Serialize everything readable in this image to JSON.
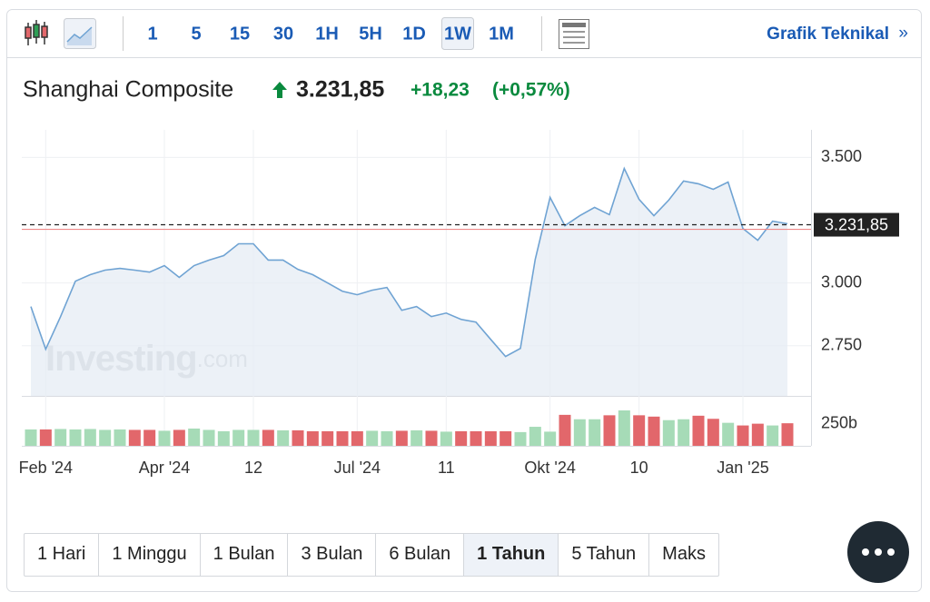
{
  "toolbar": {
    "intervals": [
      "1",
      "5",
      "15",
      "30",
      "1H",
      "5H",
      "1D",
      "1W",
      "1M"
    ],
    "selected_index": 7,
    "link": "Grafik Teknikal",
    "link_arrow": "»"
  },
  "header": {
    "name": "Shanghai Composite",
    "price": "3.231,85",
    "change": "+18,23",
    "change_pct": "(+0,57%)"
  },
  "chart_data": {
    "type": "line",
    "categories": [
      null,
      "Feb '24",
      null,
      null,
      null,
      null,
      null,
      null,
      null,
      "Apr '24",
      null,
      null,
      null,
      null,
      null,
      "12",
      null,
      null,
      null,
      null,
      null,
      null,
      "Jul '24",
      null,
      null,
      null,
      null,
      null,
      "11",
      null,
      null,
      null,
      null,
      null,
      null,
      "Okt '24",
      null,
      null,
      null,
      null,
      null,
      "10",
      null,
      null,
      null,
      null,
      null,
      null,
      "Jan '25",
      null,
      null,
      null
    ],
    "values": [
      2906,
      2736,
      2866,
      3007,
      3033,
      3051,
      3058,
      3051,
      3043,
      3069,
      3022,
      3069,
      3091,
      3109,
      3156,
      3156,
      3091,
      3091,
      3054,
      3033,
      3000,
      2967,
      2953,
      2971,
      2982,
      2891,
      2906,
      2866,
      2880,
      2855,
      2844,
      2775,
      2707,
      2739,
      3094,
      3341,
      3228,
      3268,
      3301,
      3272,
      3456,
      3333,
      3268,
      3330,
      3406,
      3395,
      3373,
      3402,
      3217,
      3170,
      3246,
      3236
    ],
    "color": "#6fa3d3",
    "fill": "#e5ecf4",
    "ylim": [
      2550,
      3610
    ],
    "yticks": [
      {
        "value": 2750,
        "label": "2.750"
      },
      {
        "value": 3000,
        "label": "3.000"
      },
      {
        "value": 3500,
        "label": "3.500"
      }
    ],
    "grid": true,
    "last_price": {
      "value": 3231.85,
      "label": "3.231,85"
    },
    "prev_close": 3213.62,
    "watermark": [
      "Investing",
      ".com"
    ],
    "volume": {
      "values": [
        185,
        185,
        190,
        185,
        190,
        180,
        185,
        180,
        180,
        170,
        180,
        195,
        180,
        165,
        180,
        180,
        180,
        175,
        175,
        165,
        165,
        165,
        165,
        170,
        165,
        170,
        175,
        170,
        160,
        165,
        165,
        165,
        165,
        155,
        215,
        160,
        350,
        300,
        300,
        345,
        400,
        345,
        330,
        290,
        300,
        340,
        305,
        260,
        230,
        250,
        230,
        255
      ],
      "up_color": "#a6dbb7",
      "down_color": "#e2676b",
      "ylim": [
        0,
        400
      ],
      "yticks": [
        {
          "value": 250,
          "label": "250b"
        }
      ]
    }
  },
  "ranges": {
    "items": [
      "1 Hari",
      "1 Minggu",
      "1 Bulan",
      "3 Bulan",
      "6 Bulan",
      "1 Tahun",
      "5 Tahun",
      "Maks"
    ],
    "selected_index": 5
  }
}
